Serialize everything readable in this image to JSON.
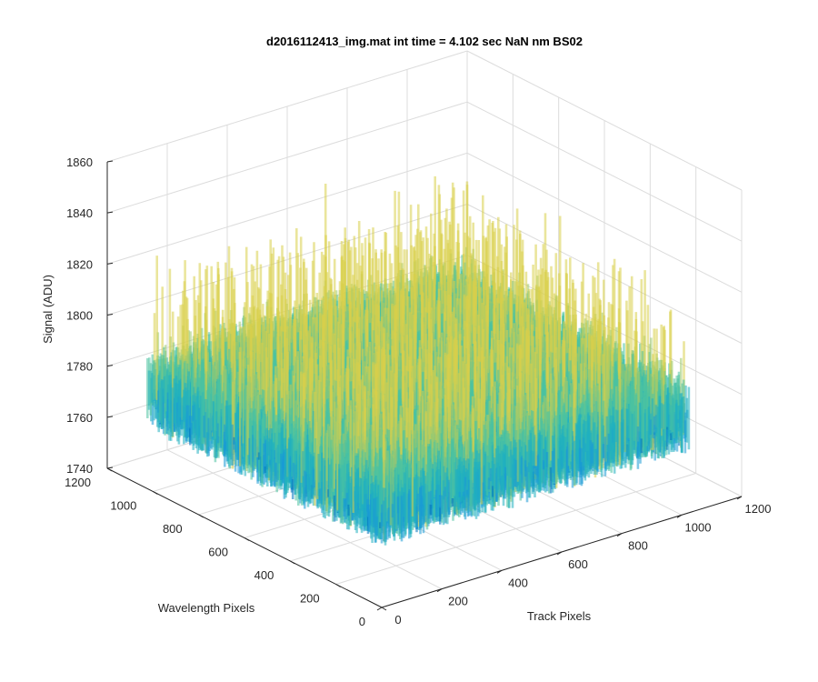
{
  "chart_data": {
    "type": "surface",
    "title": "d2016112413_img.mat int time = 4.102 sec  NaN nm BS02",
    "xlabel": "Track Pixels",
    "ylabel": "Wavelength Pixels",
    "zlabel": "Signal (ADU)",
    "xlim": [
      0,
      1200
    ],
    "ylim": [
      0,
      1200
    ],
    "zlim": [
      1740,
      1860
    ],
    "x_ticks": [
      "0",
      "200",
      "400",
      "600",
      "800",
      "1000",
      "1200"
    ],
    "y_ticks": [
      "0",
      "200",
      "400",
      "600",
      "800",
      "1000",
      "1200"
    ],
    "z_ticks": [
      "1740",
      "1760",
      "1780",
      "1800",
      "1820",
      "1840",
      "1860"
    ],
    "data_extent": {
      "x": [
        0,
        1024
      ],
      "y": [
        0,
        1024
      ]
    },
    "signal_baseline": 1785,
    "signal_range": [
      1750,
      1845
    ],
    "colormap": [
      "#0072bd",
      "#1a9bd6",
      "#20b0c0",
      "#4cc3a0",
      "#9fcb6c",
      "#d9d04a"
    ]
  }
}
